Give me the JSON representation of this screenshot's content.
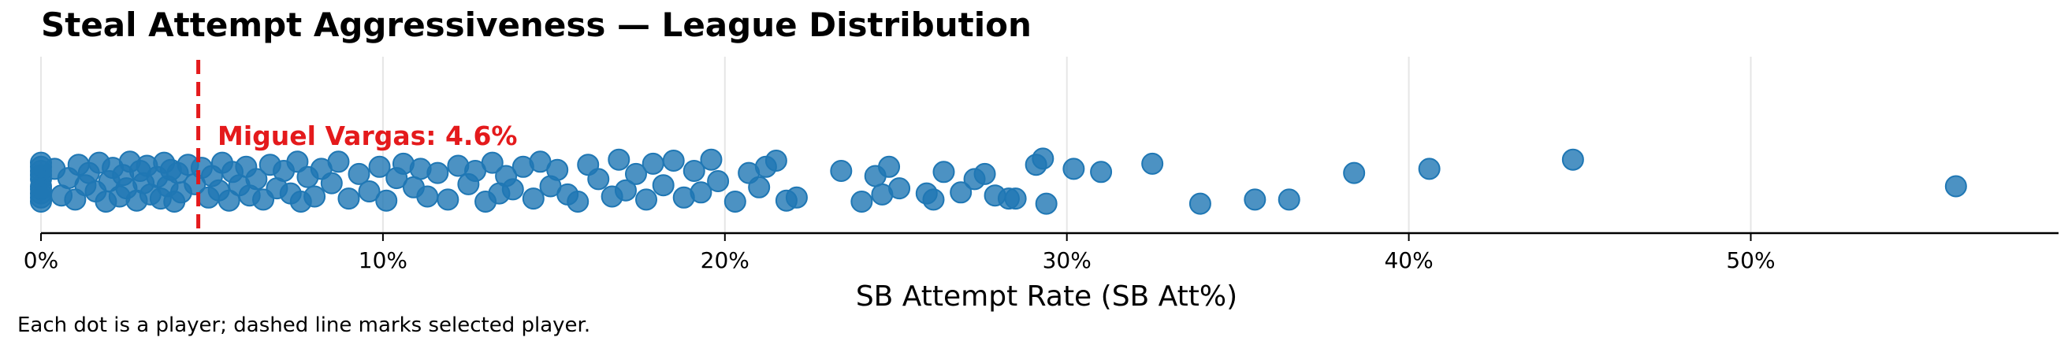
{
  "chart_data": {
    "type": "scatter",
    "title": "Steal Attempt Aggressiveness — League Distribution",
    "xlabel": "SB Attempt Rate (SB Att%)",
    "ylabel": "",
    "xlim": [
      0,
      59
    ],
    "x_ticks": [
      "0%",
      "10%",
      "20%",
      "30%",
      "40%",
      "50%"
    ],
    "x_tick_values": [
      0,
      10,
      20,
      30,
      40,
      50
    ],
    "grid": "vertical",
    "point_color": "#1f77b4",
    "reference_line": {
      "x": 4.6,
      "color": "#e41a1c",
      "style": "dashed"
    },
    "annotation": {
      "text": "Miguel Vargas: 4.6%",
      "color": "#e41a1c"
    },
    "points": [
      {
        "x": 0.0,
        "y": 0.02
      },
      {
        "x": 0.0,
        "y": -0.05
      },
      {
        "x": 0.0,
        "y": 0.1
      },
      {
        "x": 0.0,
        "y": -0.12
      },
      {
        "x": 0.0,
        "y": 0.18
      },
      {
        "x": 0.0,
        "y": -0.2
      },
      {
        "x": 0.0,
        "y": 0.06
      },
      {
        "x": 0.0,
        "y": -0.16
      },
      {
        "x": 0.0,
        "y": 0.14
      },
      {
        "x": 0.0,
        "y": -0.08
      },
      {
        "x": 0.4,
        "y": 0.12
      },
      {
        "x": 0.6,
        "y": -0.14
      },
      {
        "x": 0.8,
        "y": 0.03
      },
      {
        "x": 1.0,
        "y": -0.18
      },
      {
        "x": 1.1,
        "y": 0.16
      },
      {
        "x": 1.3,
        "y": -0.04
      },
      {
        "x": 1.4,
        "y": 0.08
      },
      {
        "x": 1.6,
        "y": -0.1
      },
      {
        "x": 1.7,
        "y": 0.18
      },
      {
        "x": 1.9,
        "y": -0.2
      },
      {
        "x": 2.0,
        "y": 0.0
      },
      {
        "x": 2.1,
        "y": 0.13
      },
      {
        "x": 2.3,
        "y": -0.15
      },
      {
        "x": 2.4,
        "y": 0.06
      },
      {
        "x": 2.5,
        "y": -0.07
      },
      {
        "x": 2.6,
        "y": 0.19
      },
      {
        "x": 2.8,
        "y": -0.19
      },
      {
        "x": 2.9,
        "y": 0.1
      },
      {
        "x": 3.0,
        "y": -0.02
      },
      {
        "x": 3.1,
        "y": 0.15
      },
      {
        "x": 3.2,
        "y": -0.13
      },
      {
        "x": 3.4,
        "y": 0.04
      },
      {
        "x": 3.5,
        "y": -0.17
      },
      {
        "x": 3.6,
        "y": 0.18
      },
      {
        "x": 3.7,
        "y": -0.05
      },
      {
        "x": 3.8,
        "y": 0.11
      },
      {
        "x": 3.9,
        "y": -0.2
      },
      {
        "x": 4.0,
        "y": 0.08
      },
      {
        "x": 4.1,
        "y": -0.11
      },
      {
        "x": 4.3,
        "y": 0.16
      },
      {
        "x": 4.5,
        "y": -0.03
      },
      {
        "x": 4.7,
        "y": 0.13
      },
      {
        "x": 4.9,
        "y": -0.16
      },
      {
        "x": 5.0,
        "y": 0.05
      },
      {
        "x": 5.2,
        "y": -0.09
      },
      {
        "x": 5.3,
        "y": 0.18
      },
      {
        "x": 5.5,
        "y": -0.19
      },
      {
        "x": 5.6,
        "y": 0.09
      },
      {
        "x": 5.8,
        "y": -0.04
      },
      {
        "x": 6.0,
        "y": 0.14
      },
      {
        "x": 6.1,
        "y": -0.14
      },
      {
        "x": 6.3,
        "y": 0.02
      },
      {
        "x": 6.5,
        "y": -0.18
      },
      {
        "x": 6.7,
        "y": 0.16
      },
      {
        "x": 6.9,
        "y": -0.07
      },
      {
        "x": 7.1,
        "y": 0.1
      },
      {
        "x": 7.3,
        "y": -0.12
      },
      {
        "x": 7.5,
        "y": 0.19
      },
      {
        "x": 7.6,
        "y": -0.2
      },
      {
        "x": 7.8,
        "y": 0.04
      },
      {
        "x": 8.0,
        "y": -0.15
      },
      {
        "x": 8.2,
        "y": 0.12
      },
      {
        "x": 8.5,
        "y": -0.02
      },
      {
        "x": 8.7,
        "y": 0.19
      },
      {
        "x": 9.0,
        "y": -0.17
      },
      {
        "x": 9.3,
        "y": 0.07
      },
      {
        "x": 9.6,
        "y": -0.1
      },
      {
        "x": 9.9,
        "y": 0.14
      },
      {
        "x": 10.1,
        "y": -0.19
      },
      {
        "x": 10.4,
        "y": 0.03
      },
      {
        "x": 10.6,
        "y": 0.17
      },
      {
        "x": 10.9,
        "y": -0.06
      },
      {
        "x": 11.1,
        "y": 0.12
      },
      {
        "x": 11.3,
        "y": -0.15
      },
      {
        "x": 11.6,
        "y": 0.08
      },
      {
        "x": 11.9,
        "y": -0.18
      },
      {
        "x": 12.2,
        "y": 0.15
      },
      {
        "x": 12.5,
        "y": -0.03
      },
      {
        "x": 12.7,
        "y": 0.1
      },
      {
        "x": 13.0,
        "y": -0.2
      },
      {
        "x": 13.2,
        "y": 0.18
      },
      {
        "x": 13.4,
        "y": -0.12
      },
      {
        "x": 13.6,
        "y": 0.05
      },
      {
        "x": 13.8,
        "y": -0.08
      },
      {
        "x": 14.1,
        "y": 0.14
      },
      {
        "x": 14.4,
        "y": -0.17
      },
      {
        "x": 14.6,
        "y": 0.19
      },
      {
        "x": 14.9,
        "y": -0.05
      },
      {
        "x": 15.1,
        "y": 0.11
      },
      {
        "x": 15.4,
        "y": -0.13
      },
      {
        "x": 15.7,
        "y": -0.2
      },
      {
        "x": 16.0,
        "y": 0.16
      },
      {
        "x": 16.3,
        "y": 0.02
      },
      {
        "x": 16.7,
        "y": -0.15
      },
      {
        "x": 16.9,
        "y": 0.21
      },
      {
        "x": 17.1,
        "y": -0.09
      },
      {
        "x": 17.4,
        "y": 0.07
      },
      {
        "x": 17.7,
        "y": -0.18
      },
      {
        "x": 17.9,
        "y": 0.17
      },
      {
        "x": 18.2,
        "y": -0.04
      },
      {
        "x": 18.5,
        "y": 0.2
      },
      {
        "x": 18.8,
        "y": -0.16
      },
      {
        "x": 19.1,
        "y": 0.1
      },
      {
        "x": 19.3,
        "y": -0.11
      },
      {
        "x": 19.6,
        "y": 0.21
      },
      {
        "x": 19.8,
        "y": 0.0
      },
      {
        "x": 20.3,
        "y": -0.2
      },
      {
        "x": 20.7,
        "y": 0.08
      },
      {
        "x": 21.0,
        "y": -0.06
      },
      {
        "x": 21.2,
        "y": 0.14
      },
      {
        "x": 21.5,
        "y": 0.2
      },
      {
        "x": 21.8,
        "y": -0.19
      },
      {
        "x": 22.1,
        "y": -0.16
      },
      {
        "x": 23.4,
        "y": 0.1
      },
      {
        "x": 24.0,
        "y": -0.2
      },
      {
        "x": 24.4,
        "y": 0.05
      },
      {
        "x": 24.6,
        "y": -0.13
      },
      {
        "x": 24.8,
        "y": 0.14
      },
      {
        "x": 25.1,
        "y": -0.07
      },
      {
        "x": 25.9,
        "y": -0.12
      },
      {
        "x": 26.1,
        "y": -0.18
      },
      {
        "x": 26.4,
        "y": 0.09
      },
      {
        "x": 26.9,
        "y": -0.11
      },
      {
        "x": 27.3,
        "y": 0.02
      },
      {
        "x": 27.6,
        "y": 0.07
      },
      {
        "x": 27.9,
        "y": -0.14
      },
      {
        "x": 28.3,
        "y": -0.17
      },
      {
        "x": 28.5,
        "y": -0.17
      },
      {
        "x": 29.1,
        "y": 0.16
      },
      {
        "x": 29.3,
        "y": 0.22
      },
      {
        "x": 29.4,
        "y": -0.22
      },
      {
        "x": 30.2,
        "y": 0.12
      },
      {
        "x": 31.0,
        "y": 0.09
      },
      {
        "x": 32.5,
        "y": 0.17
      },
      {
        "x": 33.9,
        "y": -0.22
      },
      {
        "x": 35.5,
        "y": -0.18
      },
      {
        "x": 36.5,
        "y": -0.18
      },
      {
        "x": 38.4,
        "y": 0.08
      },
      {
        "x": 40.6,
        "y": 0.12
      },
      {
        "x": 44.8,
        "y": 0.21
      },
      {
        "x": 56.0,
        "y": -0.05
      }
    ]
  },
  "caption": "Each dot is a player; dashed line marks selected player."
}
